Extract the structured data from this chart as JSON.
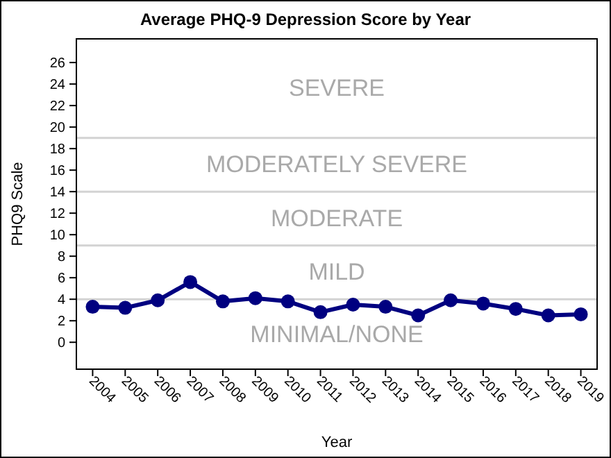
{
  "chart_data": {
    "type": "line",
    "title": "Average PHQ-9 Depression Score by Year",
    "xlabel": "Year",
    "ylabel": "PHQ9 Scale",
    "categories": [
      "2004",
      "2005",
      "2006",
      "2007",
      "2008",
      "2009",
      "2010",
      "2011",
      "2012",
      "2013",
      "2014",
      "2015",
      "2016",
      "2017",
      "2018",
      "2019"
    ],
    "series": [
      {
        "color": "#000080",
        "values": [
          3.3,
          3.2,
          3.9,
          5.6,
          3.8,
          4.1,
          3.8,
          2.8,
          3.5,
          3.3,
          2.5,
          3.9,
          3.6,
          3.1,
          2.5,
          2.6
        ]
      }
    ],
    "ylim": [
      -2.5,
      28.2
    ],
    "yticks": [
      0,
      2,
      4,
      6,
      8,
      10,
      12,
      14,
      16,
      18,
      20,
      22,
      24,
      26
    ],
    "ref_lines": [
      {
        "axis": "y",
        "value": 4,
        "color": "#d3d3d3"
      },
      {
        "axis": "y",
        "value": 9,
        "color": "#d3d3d3"
      },
      {
        "axis": "y",
        "value": 14,
        "color": "#d3d3d3"
      },
      {
        "axis": "y",
        "value": 19,
        "color": "#d3d3d3"
      }
    ],
    "annotations": [
      "MINIMAL/NONE",
      "MILD",
      "MODERATE",
      "MODERATELY SEVERE",
      "SEVERE"
    ],
    "marker": "circle",
    "line_style": "solid",
    "grid": false
  }
}
